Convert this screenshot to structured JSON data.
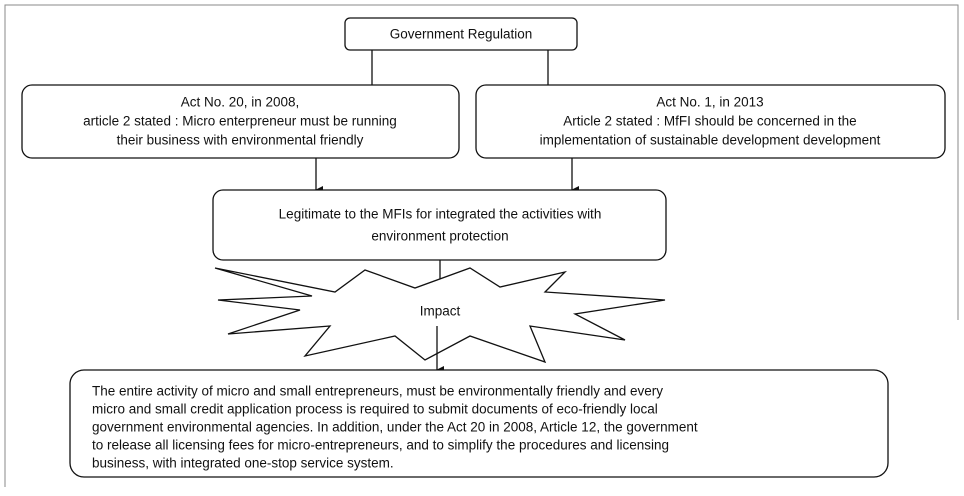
{
  "nodes": [
    {
      "label": [
        "Government Regulation"
      ]
    },
    {
      "label": [
        "Act No. 20, in 2008,",
        "article 2 stated : Micro enterpreneur must be running",
        "their business with environmental friendly"
      ]
    },
    {
      "label": [
        "Act No. 1, in 2013",
        "Article 2 stated : MfFI should be concerned in the",
        "implementation of sustainable development development"
      ]
    },
    {
      "label": [
        "Legitimate to the MFIs for integrated the activities with",
        "environment protection"
      ]
    },
    {
      "label": [
        "Impact"
      ]
    },
    {
      "label": [
        "The entire activity of micro and small entrepreneurs, must be environmentally friendly and every",
        "micro and small credit application process is required to submit documents of eco-friendly local",
        "government environmental agencies. In addition, under the Act 20 in 2008, Article 12, the government",
        "to release all licensing fees for micro-entrepreneurs, and to simplify the procedures and licensing",
        "business, with integrated one-stop service system."
      ]
    }
  ]
}
